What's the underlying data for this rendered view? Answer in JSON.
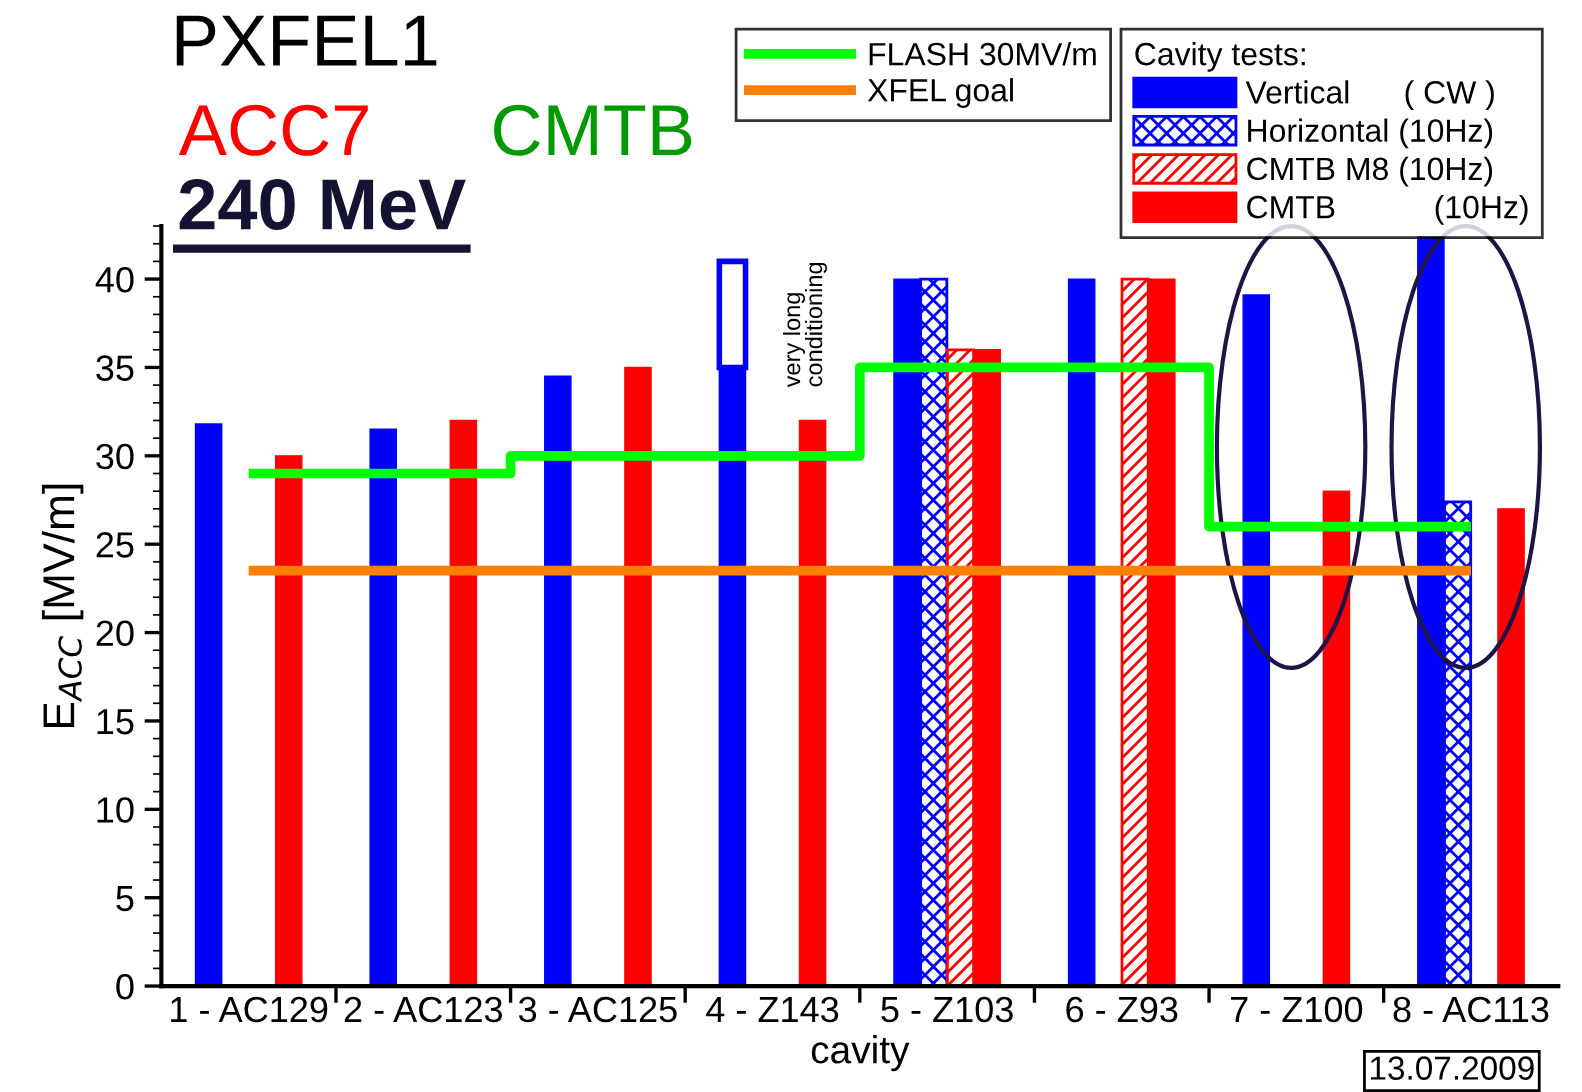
{
  "chart_data": {
    "type": "bar",
    "title": "PXFEL1",
    "xlabel": "cavity",
    "ylabel": "E$_{ACC}$ [MV/m]",
    "legend_title": "Cavity tests:",
    "categories": [
      "1 - AC129",
      "2 - AC123",
      "3 - AC125",
      "4 - Z143",
      "5 - Z103",
      "6 - Z93",
      "7 - Z100",
      "8 - AC113"
    ],
    "series": [
      {
        "name": "Vertical      ( CW )",
        "color": "#0000ff",
        "values": [
          31.8,
          31.5,
          34.5,
          35,
          40,
          40,
          39.1,
          42.4
        ]
      },
      {
        "name": "Horizontal (10Hz)",
        "color": "#0000ff",
        "values": [
          null,
          null,
          null,
          null,
          40,
          null,
          null,
          27.4
        ]
      },
      {
        "name": "CMTB M8 (10Hz)",
        "color": "#ff0000",
        "values": [
          null,
          null,
          null,
          null,
          36,
          40,
          null,
          null
        ]
      },
      {
        "name": "CMTB           (10Hz)",
        "color": "#ff0000",
        "values": [
          30,
          32,
          35,
          32,
          36,
          40,
          28,
          27
        ]
      },
      {
        "color": "#0000ff",
        "base": [
          null,
          null,
          null,
          35,
          null,
          null,
          null,
          null
        ],
        "values": [
          null,
          null,
          null,
          6,
          null,
          null,
          null,
          null
        ]
      },
      {
        "name": "FLASH 30MV/m",
        "type": "step",
        "color": "#00ff00",
        "values": [
          29,
          29,
          30,
          30,
          35,
          35,
          26,
          26
        ]
      },
      {
        "name": "XFEL goal",
        "type": "line",
        "color": "#ff8000",
        "values": [
          23.5,
          23.5,
          23.5,
          23.5,
          23.5,
          23.5,
          23.5,
          23.5
        ]
      }
    ],
    "annotations": [
      "ACC7",
      "CMTB",
      "240 MeV",
      "13.07.2009",
      "very long\nconditioning"
    ],
    "ylim": [
      0,
      43
    ],
    "yticks": [
      0,
      5,
      10,
      15,
      20,
      25,
      30,
      35,
      40
    ],
    "grid": false,
    "legend": "top right"
  }
}
